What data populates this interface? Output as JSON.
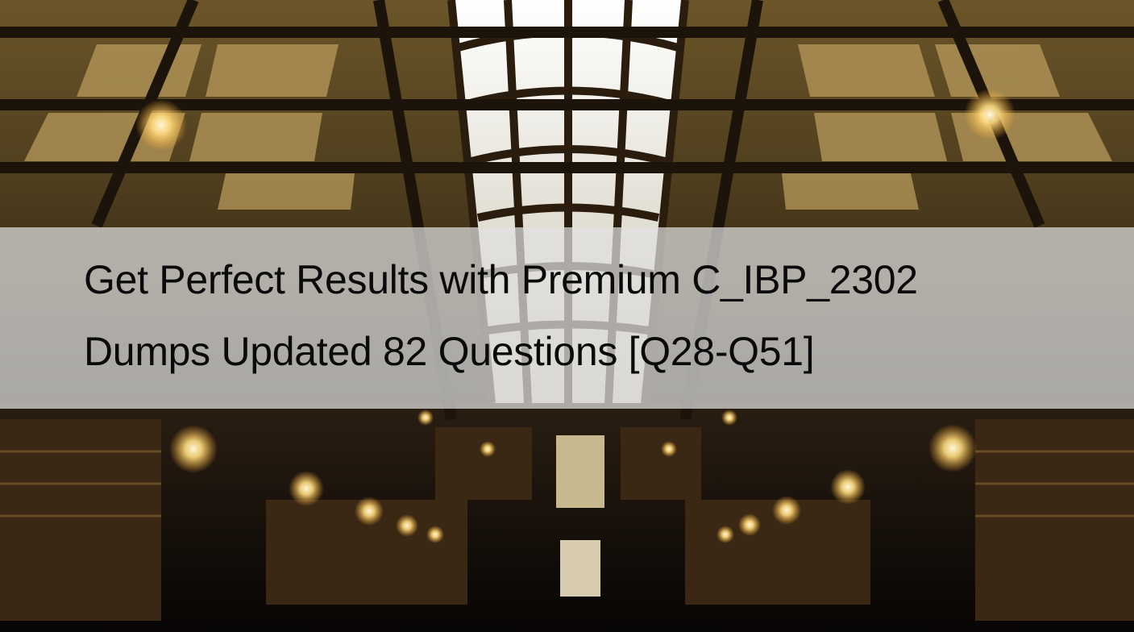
{
  "banner": {
    "lines": [
      "Get Perfect Results with Premium C_IBP_2302",
      "Dumps Updated 82 Questions [Q28-Q51]"
    ]
  }
}
